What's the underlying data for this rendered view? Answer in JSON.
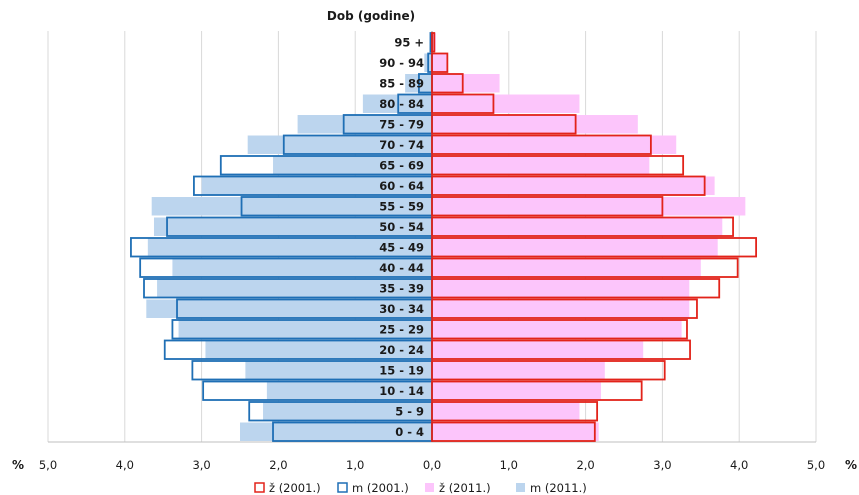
{
  "chart_data": {
    "type": "bar",
    "orientation": "horizontal",
    "subtype": "population-pyramid",
    "y_title": "Dob (godine)",
    "x_unit_label": "%",
    "xlim": [
      -5,
      5
    ],
    "x_ticks": [
      -5,
      -4,
      -3,
      -2,
      -1,
      0,
      1,
      2,
      3,
      4,
      5
    ],
    "x_tick_labels": [
      "5,0",
      "4,0",
      "3,0",
      "2,0",
      "1,0",
      "0,0",
      "1,0",
      "2,0",
      "3,0",
      "4,0",
      "5,0"
    ],
    "grid": true,
    "legend_position": "bottom",
    "categories": [
      "95 +",
      "90 - 94",
      "85 - 89",
      "80 - 84",
      "75 - 79",
      "70 - 74",
      "65 - 69",
      "60 - 64",
      "55 - 59",
      "50 - 54",
      "45 - 49",
      "40 - 44",
      "35 - 39",
      "30 - 34",
      "25 - 29",
      "20 - 24",
      "15 - 19",
      "10 - 14",
      "5 - 9",
      "0 - 4"
    ],
    "series": [
      {
        "name": "m (2011.)",
        "side": "left",
        "style": "filled",
        "color": "#bcd5ee",
        "values": [
          0.02,
          0.1,
          0.35,
          0.9,
          1.75,
          2.4,
          2.07,
          3.0,
          3.65,
          3.62,
          3.7,
          3.38,
          3.58,
          3.72,
          3.3,
          2.95,
          2.43,
          2.15,
          2.2,
          2.5
        ]
      },
      {
        "name": "ž (2011.)",
        "side": "right",
        "style": "filled",
        "color": "#fcc5fb",
        "values": [
          0.05,
          0.2,
          0.88,
          1.92,
          2.68,
          3.18,
          2.83,
          3.68,
          4.08,
          3.78,
          3.72,
          3.5,
          3.35,
          3.35,
          3.25,
          2.75,
          2.25,
          2.2,
          1.92,
          2.17
        ]
      },
      {
        "name": "m (2001.)",
        "side": "left",
        "style": "outline",
        "color": "#1f6fb5",
        "values": [
          0.02,
          0.05,
          0.17,
          0.44,
          1.15,
          1.93,
          2.75,
          3.1,
          2.48,
          3.45,
          3.92,
          3.8,
          3.75,
          3.32,
          3.38,
          3.48,
          3.12,
          2.98,
          2.38,
          2.07
        ]
      },
      {
        "name": "ž (2001.)",
        "side": "right",
        "style": "outline",
        "color": "#e2231a",
        "values": [
          0.03,
          0.2,
          0.4,
          0.8,
          1.87,
          2.85,
          3.27,
          3.55,
          3.0,
          3.92,
          4.22,
          3.98,
          3.74,
          3.45,
          3.32,
          3.36,
          3.03,
          2.73,
          2.15,
          2.12
        ]
      }
    ],
    "legend": [
      {
        "label": "ž (2001.)",
        "style": "outline",
        "color": "#e2231a"
      },
      {
        "label": "m (2001.)",
        "style": "outline",
        "color": "#1f6fb5"
      },
      {
        "label": "ž (2011.)",
        "style": "filled",
        "color": "#fcc5fb"
      },
      {
        "label": "m (2011.)",
        "style": "filled",
        "color": "#bcd5ee"
      }
    ]
  }
}
